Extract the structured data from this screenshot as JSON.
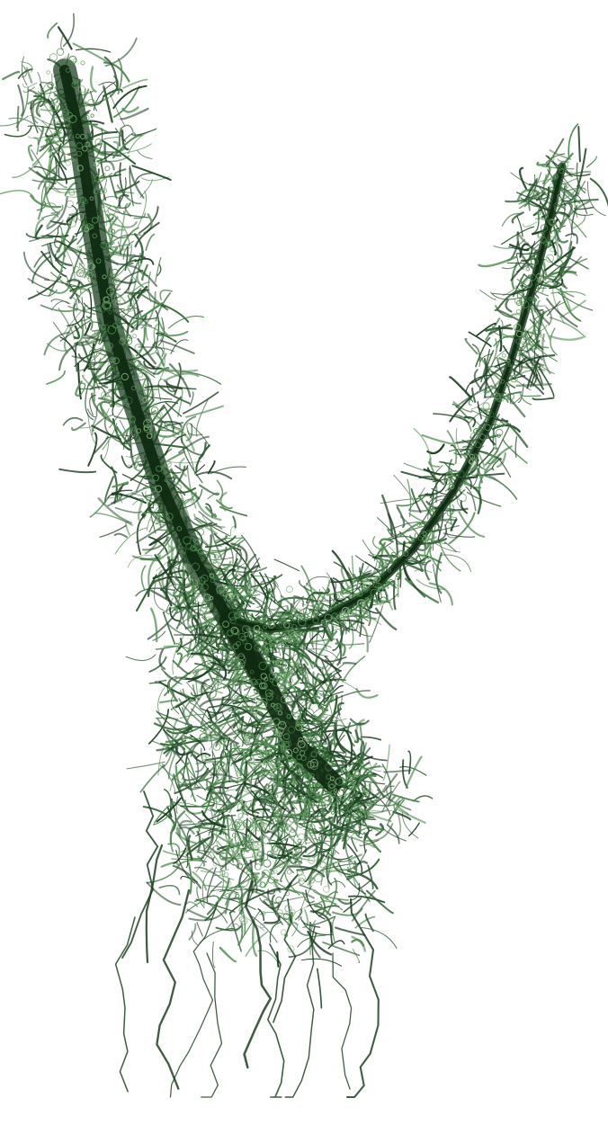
{
  "image": {
    "subject": "branching-filament-network",
    "colors": {
      "background": "#ffffff",
      "core": "#0f2a12",
      "dark": "#1c4020",
      "mid": "#2f5f32",
      "light": "#4f8a4f",
      "highlight": "#7fae78"
    }
  }
}
